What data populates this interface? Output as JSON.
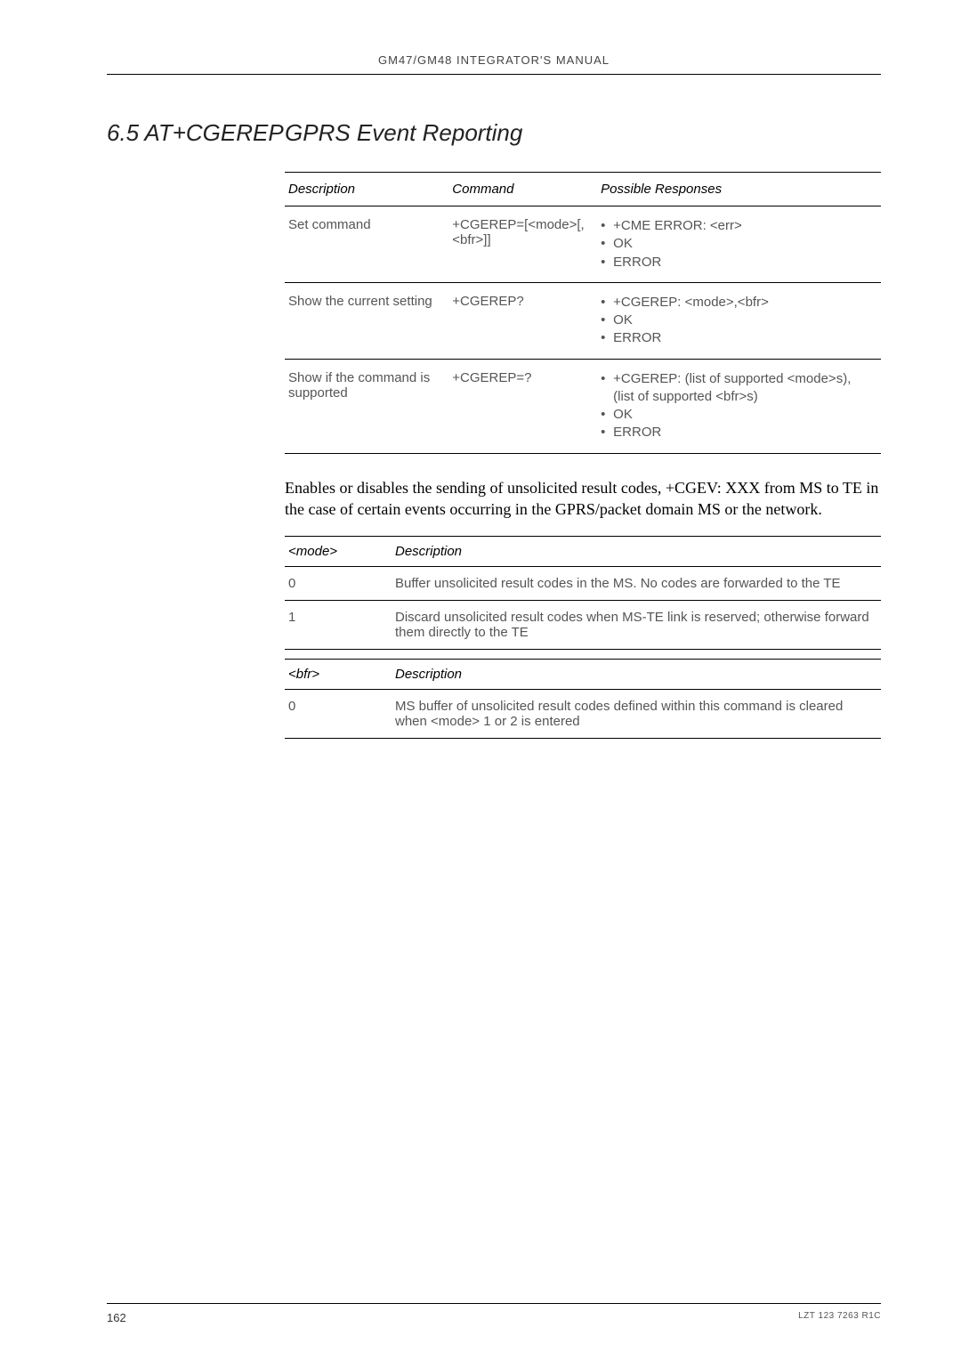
{
  "running_head": "GM47/GM48 INTEGRATOR'S MANUAL",
  "section": {
    "num": "6.5 AT+CGEREP",
    "title": "GPRS Event Reporting"
  },
  "cmd_table": {
    "headers": [
      "Description",
      "Command",
      "Possible Responses"
    ],
    "rows": [
      {
        "desc": "Set command",
        "cmd": "+CGEREP=[<mode>[,<bfr>]]",
        "resp": [
          "+CME ERROR: <err>",
          "OK",
          "ERROR"
        ]
      },
      {
        "desc": "Show the current setting",
        "cmd": "+CGEREP?",
        "resp": [
          "+CGEREP: <mode>,<bfr>",
          "OK",
          "ERROR"
        ]
      },
      {
        "desc": "Show if the command is supported",
        "cmd": "+CGEREP=?",
        "resp": [
          "+CGEREP: (list of supported <mode>s),(list of supported <bfr>s)",
          "OK",
          "ERROR"
        ]
      }
    ]
  },
  "body_text": "Enables or disables the sending of unsolicited result codes, +CGEV: XXX from MS to TE in the case of certain events occurring in the GPRS/packet domain MS or the network.",
  "mode_table": {
    "headers": [
      "<mode>",
      "Description"
    ],
    "rows": [
      {
        "k": "0",
        "v": "Buffer unsolicited result codes in the MS. No codes are forwarded to the TE"
      },
      {
        "k": "1",
        "v": "Discard unsolicited result codes when MS-TE link is reserved; otherwise forward them directly to the TE"
      }
    ]
  },
  "bfr_table": {
    "headers": [
      "<bfr>",
      "Description"
    ],
    "rows": [
      {
        "k": "0",
        "v": "MS buffer of unsolicited result codes defined within this command is cleared when <mode> 1 or 2 is entered"
      }
    ]
  },
  "footer": {
    "page": "162",
    "doc": "LZT 123 7263 R1C"
  }
}
